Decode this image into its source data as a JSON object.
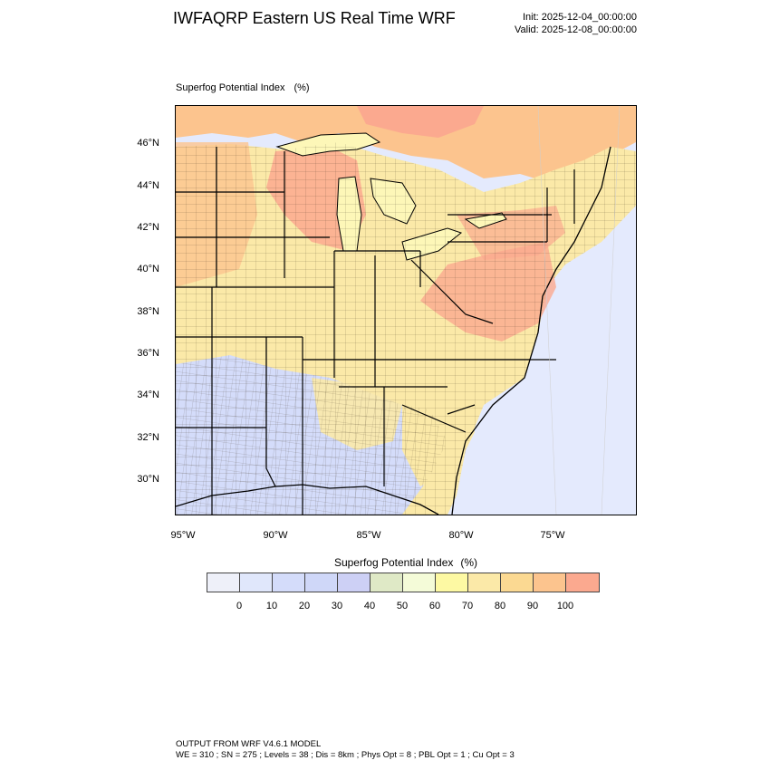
{
  "header": {
    "title": "IWFAQRP Eastern US Real Time WRF",
    "init": "Init: 2025-12-04_00:00:00",
    "valid": "Valid: 2025-12-08_00:00:00"
  },
  "plot": {
    "field_label": "Superfog Potential Index",
    "field_unit": "(%)",
    "lat_labels": [
      "46°N",
      "44°N",
      "42°N",
      "40°N",
      "38°N",
      "36°N",
      "34°N",
      "32°N",
      "30°N"
    ],
    "lon_labels": [
      "95°W",
      "90°W",
      "85°W",
      "80°W",
      "75°W"
    ]
  },
  "colorbar": {
    "title": "Superfog Potential Index",
    "unit": "(%)",
    "colors": [
      "#eef0f9",
      "#e0e7fb",
      "#d4dcfa",
      "#cfd7f8",
      "#cdd0f5",
      "#dfe9c6",
      "#f4fbd8",
      "#fdf9a3",
      "#fbe9a8",
      "#fbd992",
      "#fcc48e",
      "#fba98f"
    ],
    "ticks": [
      "0",
      "10",
      "20",
      "30",
      "40",
      "50",
      "60",
      "70",
      "80",
      "90",
      "100"
    ]
  },
  "footer": {
    "line1": "OUTPUT FROM WRF V4.6.1 MODEL",
    "line2": "WE = 310 ; SN = 275 ; Levels = 38 ; Dis = 8km ; Phys Opt = 8 ; PBL Opt = 1 ; Cu Opt = 3"
  },
  "map_colors": {
    "ocean": "#e4eafd",
    "lake": "#fdf7b8",
    "high": "#fba98f",
    "orange": "#fcc48e",
    "yellow": "#fbe9a8",
    "pale": "#f4fbd8",
    "blue": "#d4dcfa",
    "lightblue": "#e0e7fb"
  }
}
